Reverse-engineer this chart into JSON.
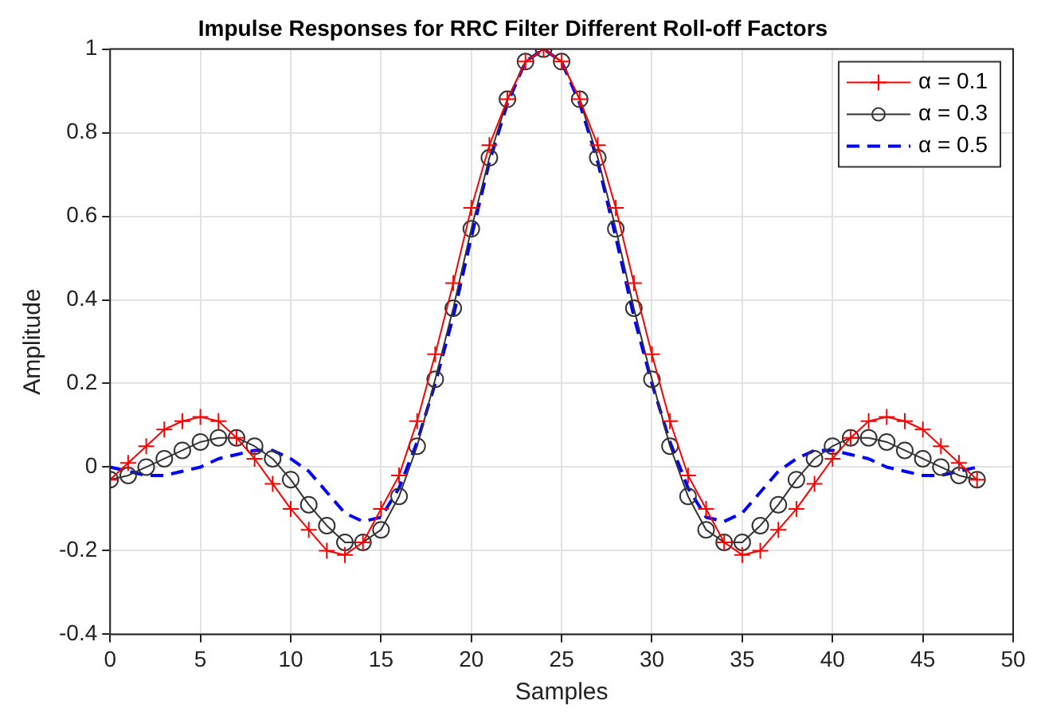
{
  "chart_data": {
    "type": "line",
    "title": "Impulse Responses for RRC Filter Different Roll-off Factors",
    "xlabel": "Samples",
    "ylabel": "Amplitude",
    "x": [
      0,
      1,
      2,
      3,
      4,
      5,
      6,
      7,
      8,
      9,
      10,
      11,
      12,
      13,
      14,
      15,
      16,
      17,
      18,
      19,
      20,
      21,
      22,
      23,
      24,
      25,
      26,
      27,
      28,
      29,
      30,
      31,
      32,
      33,
      34,
      35,
      36,
      37,
      38,
      39,
      40,
      41,
      42,
      43,
      44,
      45,
      46,
      47,
      48
    ],
    "series": [
      {
        "name": "α = 0.1",
        "color": "#ff0000",
        "marker": "cross",
        "line_style": "solid",
        "values": [
          -0.03,
          0.01,
          0.05,
          0.09,
          0.11,
          0.12,
          0.11,
          0.07,
          0.02,
          -0.04,
          -0.1,
          -0.15,
          -0.2,
          -0.21,
          -0.18,
          -0.1,
          -0.02,
          0.11,
          0.27,
          0.44,
          0.62,
          0.77,
          0.88,
          0.97,
          1.0,
          0.97,
          0.88,
          0.77,
          0.62,
          0.44,
          0.27,
          0.11,
          -0.02,
          -0.1,
          -0.18,
          -0.21,
          -0.2,
          -0.15,
          -0.1,
          -0.04,
          0.02,
          0.07,
          0.11,
          0.12,
          0.11,
          0.09,
          0.05,
          0.01,
          -0.03
        ]
      },
      {
        "name": "α = 0.3",
        "color": "#333333",
        "marker": "circle",
        "line_style": "solid",
        "values": [
          -0.03,
          -0.02,
          0.0,
          0.02,
          0.04,
          0.06,
          0.07,
          0.07,
          0.05,
          0.02,
          -0.03,
          -0.09,
          -0.14,
          -0.18,
          -0.18,
          -0.15,
          -0.07,
          0.05,
          0.21,
          0.38,
          0.57,
          0.74,
          0.88,
          0.97,
          1.0,
          0.97,
          0.88,
          0.74,
          0.57,
          0.38,
          0.21,
          0.05,
          -0.07,
          -0.15,
          -0.18,
          -0.18,
          -0.14,
          -0.09,
          -0.03,
          0.02,
          0.05,
          0.07,
          0.07,
          0.06,
          0.04,
          0.02,
          0.0,
          -0.02,
          -0.03
        ]
      },
      {
        "name": "α = 0.5",
        "color": "#0000ff",
        "marker": "none",
        "line_style": "dashed",
        "values": [
          0.0,
          -0.01,
          -0.02,
          -0.02,
          -0.01,
          0.0,
          0.02,
          0.03,
          0.04,
          0.04,
          0.02,
          -0.01,
          -0.06,
          -0.11,
          -0.13,
          -0.12,
          -0.05,
          0.06,
          0.2,
          0.36,
          0.55,
          0.73,
          0.87,
          0.97,
          1.0,
          0.97,
          0.87,
          0.73,
          0.55,
          0.36,
          0.2,
          0.06,
          -0.05,
          -0.12,
          -0.13,
          -0.11,
          -0.06,
          -0.01,
          0.02,
          0.04,
          0.04,
          0.03,
          0.02,
          0.0,
          -0.01,
          -0.02,
          -0.02,
          -0.01,
          0.0
        ]
      }
    ],
    "xlim": [
      0,
      50
    ],
    "xticks": [
      0,
      5,
      10,
      15,
      20,
      25,
      30,
      35,
      40,
      45,
      50
    ],
    "ylim": [
      -0.4,
      1
    ],
    "yticks": [
      -0.4,
      -0.2,
      0,
      0.2,
      0.4,
      0.6,
      0.8,
      1
    ],
    "grid": true,
    "legend": "top right"
  }
}
